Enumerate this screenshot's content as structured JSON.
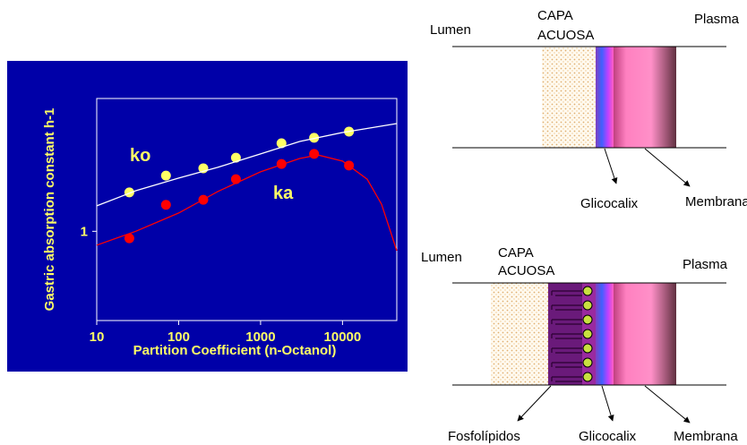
{
  "chart_data": {
    "type": "scatter",
    "xlabel": "Partition Coefficient (n-Octanol)",
    "ylabel": "Gastric absorption constant h-1",
    "annotations": [
      "ko",
      "ka"
    ],
    "xlog": true,
    "ylog": true,
    "xlim": [
      10,
      46000
    ],
    "ylim": [
      0.3,
      6
    ],
    "xticks": [
      10,
      100,
      1000,
      10000
    ],
    "yticks": [
      1
    ],
    "background": "#0000a8",
    "series": [
      {
        "style": "marker",
        "color": "#ffff66",
        "x": [
          25,
          70,
          200,
          500,
          1800,
          4500,
          12000
        ],
        "values": [
          1.69,
          2.12,
          2.34,
          2.7,
          3.28,
          3.53,
          3.84
        ]
      },
      {
        "style": "marker",
        "color": "#ff0000",
        "x": [
          25,
          70,
          200,
          500,
          1800,
          4500,
          12000
        ],
        "values": [
          0.91,
          1.43,
          1.53,
          2.02,
          2.48,
          2.84,
          2.43
        ]
      },
      {
        "style": "line",
        "color": "#ffffff",
        "x": [
          10,
          30,
          100,
          300,
          1000,
          3000,
          10000,
          46000
        ],
        "values": [
          1.41,
          1.73,
          2.05,
          2.37,
          2.84,
          3.36,
          3.79,
          4.28
        ]
      },
      {
        "style": "line",
        "color": "#ff0000",
        "x": [
          10,
          30,
          100,
          300,
          1000,
          3000,
          5000,
          10000,
          20000,
          30000,
          46000
        ],
        "values": [
          0.83,
          1.0,
          1.28,
          1.71,
          2.23,
          2.67,
          2.8,
          2.58,
          2.02,
          1.44,
          0.77
        ]
      }
    ]
  },
  "diagram_top": {
    "lumen": "Lumen",
    "capa_lines": [
      "CAPA",
      "ACUOSA"
    ],
    "plasma": "Plasma",
    "glicocalix": "Glicocalix",
    "membrana": "Membrana"
  },
  "diagram_bottom": {
    "lumen": "Lumen",
    "capa_lines": [
      "CAPA",
      "ACUOSA"
    ],
    "plasma": "Plasma",
    "fosfolipidos": "Fosfolípidos",
    "glicocalix": "Glicocalix",
    "membrana": "Membrana"
  }
}
